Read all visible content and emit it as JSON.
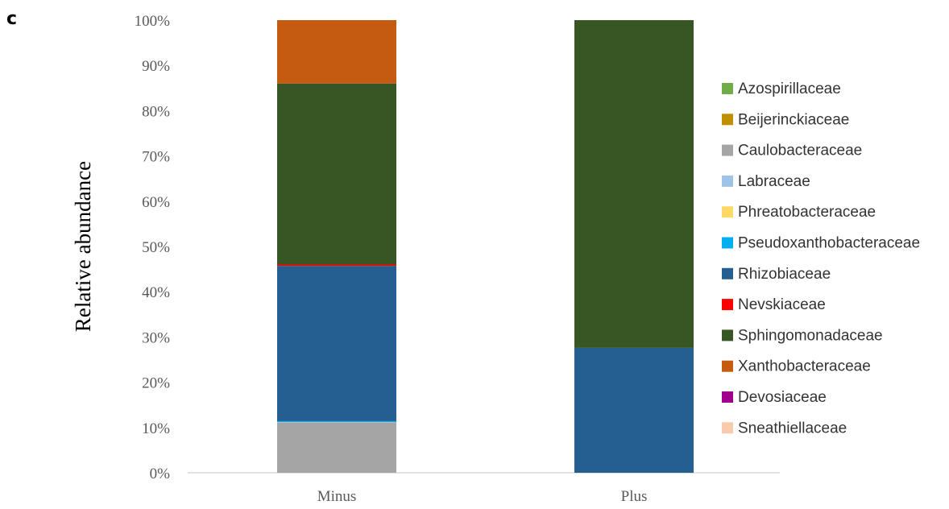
{
  "panel_label": "c",
  "chart_data": {
    "type": "bar",
    "stacked": true,
    "ylabel": "Relative abundance",
    "xlabel": "",
    "ylim": [
      0,
      100
    ],
    "y_ticks": [
      "0%",
      "10%",
      "20%",
      "30%",
      "40%",
      "50%",
      "60%",
      "70%",
      "80%",
      "90%",
      "100%"
    ],
    "categories": [
      "Minus",
      "Plus"
    ],
    "legend_position": "right",
    "series": [
      {
        "name": "Azospirillaceae",
        "color": "#70ad47",
        "values": [
          0,
          0
        ]
      },
      {
        "name": "Beijerinckiaceae",
        "color": "#bf9000",
        "values": [
          0,
          0
        ]
      },
      {
        "name": "Caulobacteraceae",
        "color": "#a5a5a5",
        "values": [
          11.1,
          0
        ]
      },
      {
        "name": "Labraceae",
        "color": "#9dc3e6",
        "values": [
          0.1,
          0
        ]
      },
      {
        "name": "Phreatobacteraceae",
        "color": "#ffd966",
        "values": [
          0,
          0
        ]
      },
      {
        "name": "Pseudoxanthobacteraceae",
        "color": "#00b0f0",
        "values": [
          0.2,
          0
        ]
      },
      {
        "name": "Rhizobiaceae",
        "color": "#255e91",
        "values": [
          34.3,
          27.6
        ]
      },
      {
        "name": "Nevskiaceae",
        "color": "#ff0000",
        "values": [
          0.3,
          0
        ]
      },
      {
        "name": "Sphingomonadaceae",
        "color": "#375623",
        "values": [
          40.0,
          72.4
        ]
      },
      {
        "name": "Xanthobacteraceae",
        "color": "#c55a11",
        "values": [
          14.0,
          0
        ]
      },
      {
        "name": "Devosiaceae",
        "color": "#a0008c",
        "values": [
          0,
          0
        ]
      },
      {
        "name": "Sneathiellaceae",
        "color": "#f8cbad",
        "values": [
          0,
          0
        ]
      }
    ]
  }
}
